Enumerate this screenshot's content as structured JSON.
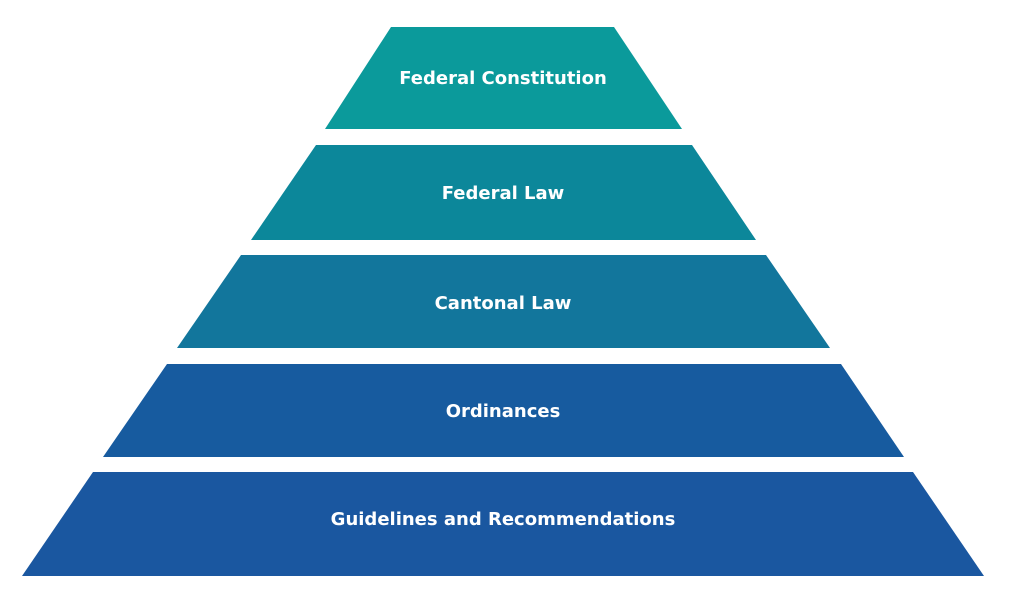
{
  "diagram": {
    "type": "pyramid",
    "order": "top-to-bottom, highest authority first",
    "tiers": [
      {
        "id": "federal-constitution",
        "label": "Federal Constitution",
        "color": "#0b9a9b"
      },
      {
        "id": "federal-law",
        "label": "Federal Law",
        "color": "#0c879a"
      },
      {
        "id": "cantonal-law",
        "label": "Cantonal Law",
        "color": "#12769c"
      },
      {
        "id": "ordinances",
        "label": "Ordinances",
        "color": "#175b9f"
      },
      {
        "id": "guidelines-and-recommendations",
        "label": "Guidelines and Recommendations",
        "color": "#1a57a0"
      }
    ]
  }
}
